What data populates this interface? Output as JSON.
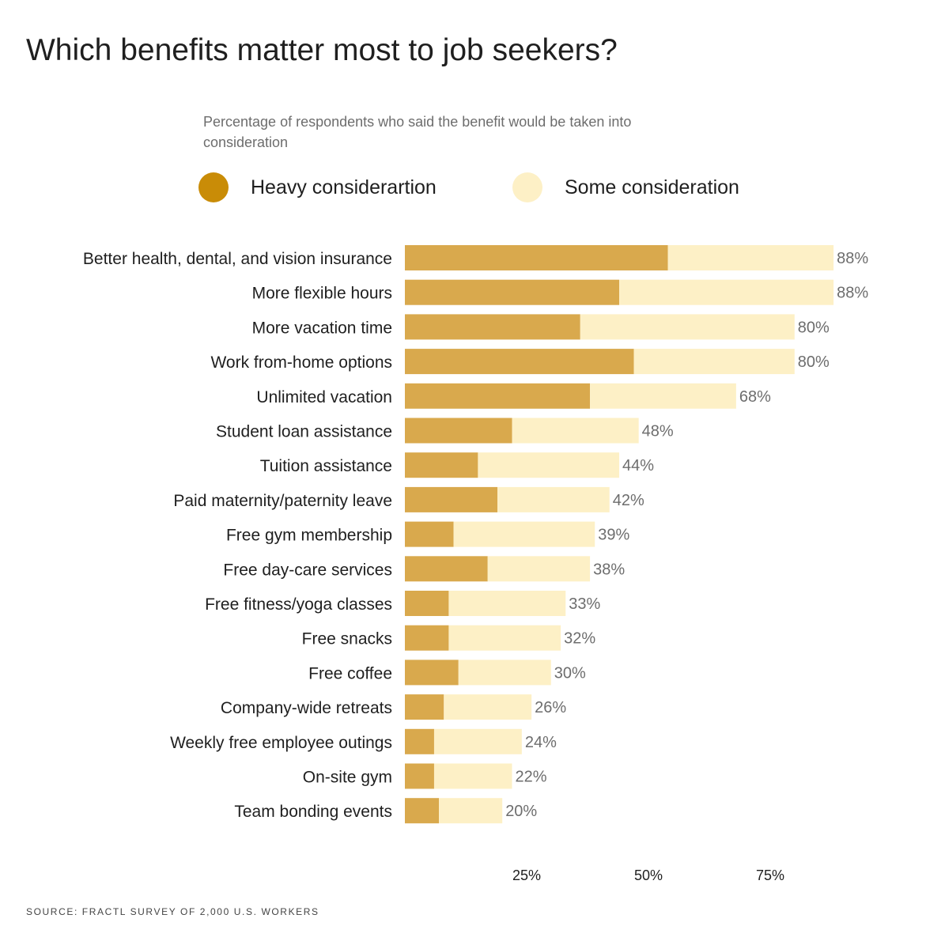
{
  "chart_data": {
    "type": "bar",
    "orientation": "horizontal",
    "stacked": true,
    "title": "Which benefits matter most to job seekers?",
    "subtitle": "Percentage of respondents who said the benefit would be taken into consideration",
    "categories": [
      "Better health, dental, and vision insurance",
      "More flexible hours",
      "More vacation time",
      "Work from-home options",
      "Unlimited vacation",
      "Student loan assistance",
      "Tuition assistance",
      "Paid maternity/paternity leave",
      "Free gym membership",
      "Free day-care services",
      "Free fitness/yoga classes",
      "Free snacks",
      "Free coffee",
      "Company-wide retreats",
      "Weekly free employee outings",
      "On-site gym",
      "Team bonding events"
    ],
    "series": [
      {
        "name": "Heavy considerartion",
        "color": "#d9a94d",
        "values": [
          54,
          44,
          36,
          47,
          38,
          22,
          15,
          19,
          10,
          17,
          9,
          9,
          11,
          8,
          6,
          6,
          7
        ]
      },
      {
        "name": "Some consideration",
        "color": "#fdf0c6",
        "values": [
          34,
          44,
          44,
          33,
          30,
          26,
          29,
          23,
          29,
          21,
          24,
          23,
          19,
          18,
          18,
          16,
          13
        ]
      }
    ],
    "totals": [
      88,
      88,
      80,
      80,
      68,
      48,
      44,
      42,
      39,
      38,
      33,
      32,
      30,
      26,
      24,
      22,
      20
    ],
    "total_labels": [
      "88%",
      "88%",
      "80%",
      "80%",
      "68%",
      "48%",
      "44%",
      "42%",
      "39%",
      "38%",
      "33%",
      "32%",
      "30%",
      "26%",
      "24%",
      "22%",
      "20%"
    ],
    "xticks": [
      25,
      50,
      75
    ],
    "xtick_labels": [
      "25%",
      "50%",
      "75%"
    ],
    "xlim": [
      0,
      100
    ],
    "grid": false,
    "legend": {
      "position": "top",
      "heavy_color": "#c98c07",
      "some_color": "#fdf0c6"
    }
  },
  "source": "SOURCE: FRACTL SURVEY OF 2,000 U.S. WORKERS"
}
